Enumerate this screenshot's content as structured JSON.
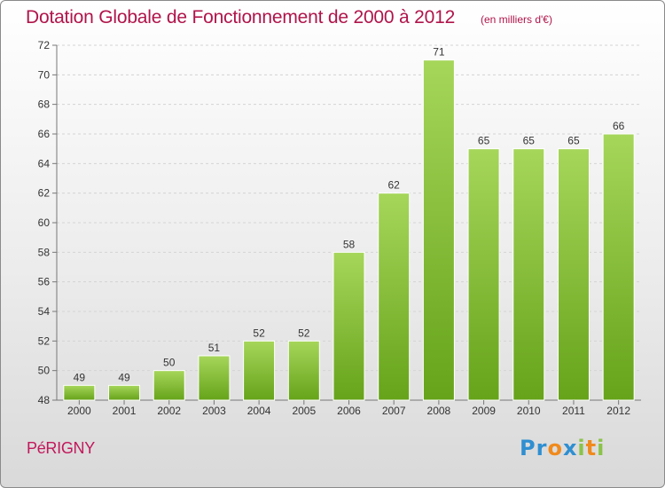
{
  "title": "Dotation Globale de Fonctionnement de 2000 à 2012",
  "subtitle": "(en milliers d'€)",
  "commune": "PéRIGNY",
  "logo": {
    "text": "Proxiti",
    "letters": [
      {
        "ch": "P",
        "color": "#2f8fd1"
      },
      {
        "ch": "r",
        "color": "#2f8fd1"
      },
      {
        "ch": "o",
        "color": "#f08a1c"
      },
      {
        "ch": "x",
        "color": "#2f8fd1"
      },
      {
        "ch": "i",
        "color": "#8bc34a"
      },
      {
        "ch": "t",
        "color": "#f08a1c"
      },
      {
        "ch": "i",
        "color": "#8bc34a"
      }
    ]
  },
  "chart_data": {
    "type": "bar",
    "categories": [
      "2000",
      "2001",
      "2002",
      "2003",
      "2004",
      "2005",
      "2006",
      "2007",
      "2008",
      "2009",
      "2010",
      "2011",
      "2012"
    ],
    "values": [
      49,
      49,
      50,
      51,
      52,
      52,
      58,
      62,
      71,
      65,
      65,
      65,
      66
    ],
    "ylim": [
      48,
      72
    ],
    "yticks": [
      48,
      50,
      52,
      54,
      56,
      58,
      60,
      62,
      64,
      66,
      68,
      70,
      72
    ],
    "grid": true,
    "bar_color_top": "#a6d65a",
    "bar_color_bottom": "#66a31a",
    "axis_color": "#777777"
  }
}
